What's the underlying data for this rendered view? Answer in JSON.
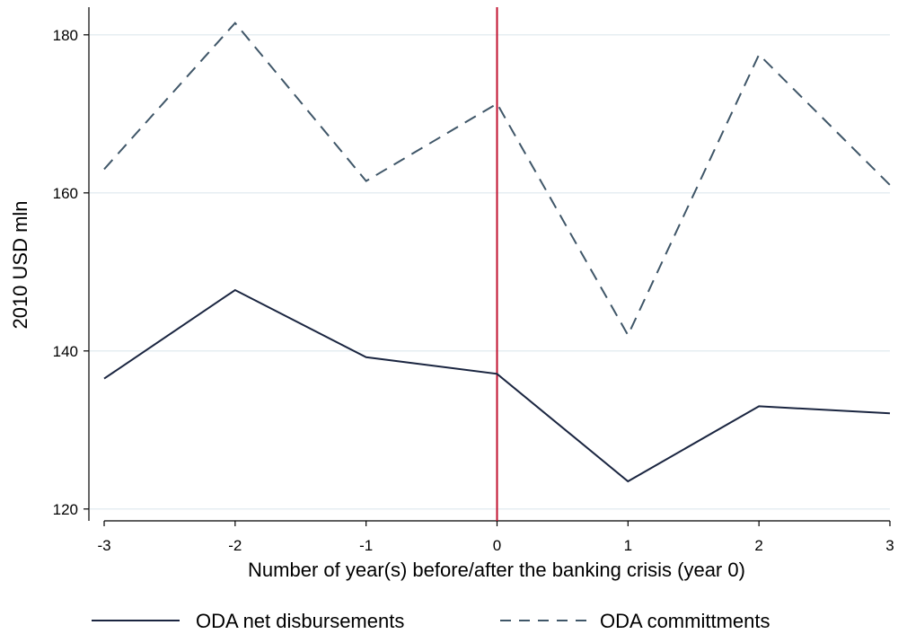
{
  "chart_data": {
    "type": "line",
    "title": "",
    "xlabel": "Number of year(s) before/after the banking crisis (year 0)",
    "ylabel": "2010 USD mln",
    "x": [
      -3,
      -2,
      -1,
      0,
      1,
      2,
      3
    ],
    "x_ticks": [
      "-3",
      "-2",
      "-1",
      "0",
      "1",
      "2",
      "3"
    ],
    "y_ticks": [
      "120",
      "140",
      "160",
      "180"
    ],
    "xlim": [
      -3,
      3
    ],
    "ylim": [
      118.5,
      183.5
    ],
    "grid": "horizontal",
    "legend_position": "bottom",
    "vertical_reference_line": {
      "x": 0,
      "color": "#c1112f"
    },
    "series": [
      {
        "name": "ODA net disbursements",
        "style": "solid",
        "color": "#1a2540",
        "values": [
          136.5,
          147.7,
          139.2,
          137.1,
          123.5,
          133.0,
          132.1
        ]
      },
      {
        "name": "ODA committments",
        "style": "dashed",
        "color": "#3f5668",
        "values": [
          163.0,
          181.5,
          161.5,
          171.3,
          142.0,
          177.5,
          161.0
        ]
      }
    ]
  }
}
